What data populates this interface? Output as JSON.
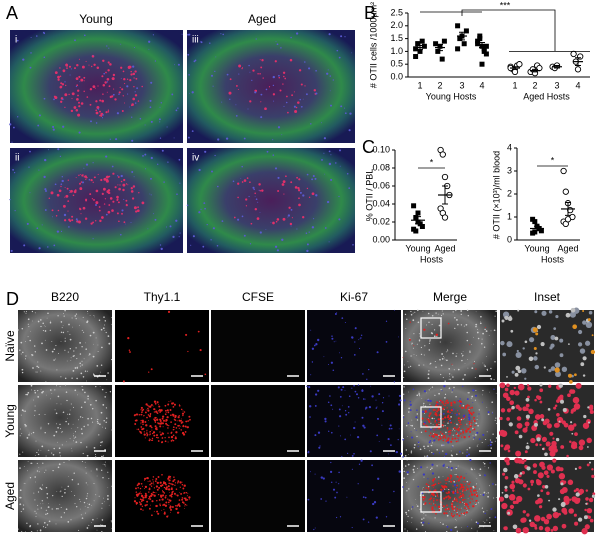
{
  "panel_labels": [
    "A",
    "B",
    "C",
    "D"
  ],
  "panel_a": {
    "columns": [
      "Young",
      "Aged"
    ],
    "images": [
      "i",
      "iii",
      "ii",
      "iv"
    ]
  },
  "panel_d": {
    "columns": [
      "B220",
      "Thy1.1",
      "CFSE",
      "Ki-67",
      "Merge",
      "Inset"
    ],
    "rows": [
      "Naïve",
      "Young",
      "Aged"
    ]
  },
  "chart_data": [
    {
      "type": "scatter",
      "y_label": "# OTII cells /1000µm²",
      "ylim": [
        0,
        2.5
      ],
      "yticks": [
        {
          "value": 0,
          "label": "0.0"
        },
        {
          "value": 0.5,
          "label": "0.5"
        },
        {
          "value": 1,
          "label": "1.0"
        },
        {
          "value": 1.5,
          "label": "1.5"
        },
        {
          "value": 2,
          "label": "2.0"
        },
        {
          "value": 2.5,
          "label": "2.5"
        }
      ],
      "categories": [
        "1",
        "2",
        "3",
        "4",
        "1",
        "2",
        "3",
        "4"
      ],
      "groups": [
        "Young Hosts",
        "Aged Hosts"
      ],
      "significance": "***",
      "markers": [
        "square",
        "square",
        "square",
        "square",
        "circle",
        "circle",
        "circle",
        "circle"
      ],
      "values": [
        [
          1.1,
          1.3,
          1.0,
          1.4,
          1.2,
          0.8,
          1.3
        ],
        [
          1.3,
          1.0,
          1.2,
          0.7,
          1.4
        ],
        [
          2.0,
          1.5,
          1.6,
          1.3,
          1.8,
          1.1
        ],
        [
          1.3,
          1.5,
          1.2,
          1.0,
          0.9,
          1.4,
          1.6,
          0.5,
          1.1,
          1.2
        ],
        [
          0.4,
          0.3,
          0.2,
          0.45,
          0.5,
          0.35
        ],
        [
          0.2,
          0.3,
          0.15,
          0.45,
          0.35
        ],
        [
          0.4,
          0.35,
          0.45
        ],
        [
          0.9,
          0.6,
          0.3,
          0.8
        ]
      ],
      "means": [
        1.15,
        1.15,
        1.6,
        1.25,
        0.35,
        0.25,
        0.4,
        0.6
      ],
      "sems": [
        0.08,
        0.12,
        0.15,
        0.1,
        0.05,
        0.05,
        0.05,
        0.15
      ]
    },
    {
      "type": "scatter",
      "y_label": "% OTII / PBL",
      "x_label": "Hosts",
      "ylim": [
        0,
        0.1
      ],
      "yticks": [
        {
          "value": 0,
          "label": "0.00"
        },
        {
          "value": 0.02,
          "label": "0.02"
        },
        {
          "value": 0.04,
          "label": "0.04"
        },
        {
          "value": 0.06,
          "label": "0.06"
        },
        {
          "value": 0.08,
          "label": "0.08"
        },
        {
          "value": 0.1,
          "label": "0.10"
        }
      ],
      "categories": [
        "Young",
        "Aged"
      ],
      "significance": "*",
      "markers": [
        "square",
        "circle"
      ],
      "values": [
        [
          0.038,
          0.025,
          0.02,
          0.018,
          0.015,
          0.012,
          0.01,
          0.03
        ],
        [
          0.1,
          0.095,
          0.07,
          0.06,
          0.05,
          0.035,
          0.03,
          0.025
        ]
      ],
      "means": [
        0.022,
        0.05
      ],
      "sems": [
        0.004,
        0.01
      ]
    },
    {
      "type": "scatter",
      "y_label": "# OTII (×10³)/ml blood",
      "x_label": "Hosts",
      "ylim": [
        0,
        4
      ],
      "yticks": [
        0,
        1,
        2,
        3,
        4
      ],
      "categories": [
        "Young",
        "Aged"
      ],
      "significance": "*",
      "markers": [
        "square",
        "circle"
      ],
      "values": [
        [
          0.9,
          0.8,
          0.6,
          0.5,
          0.4,
          0.3,
          0.35
        ],
        [
          3.0,
          2.1,
          1.6,
          1.3,
          1.0,
          0.8,
          0.7,
          0.9
        ]
      ],
      "means": [
        0.5,
        1.35
      ],
      "sems": [
        0.1,
        0.28
      ]
    }
  ]
}
